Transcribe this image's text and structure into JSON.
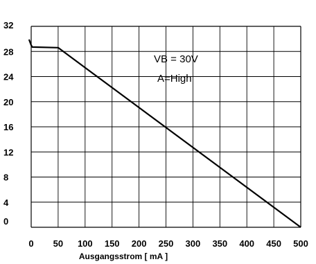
{
  "chart_data": {
    "type": "line",
    "title": "",
    "xlabel": "Ausgangsstrom  [ mA ]",
    "ylabel": "",
    "xlim": [
      0,
      500
    ],
    "ylim": [
      0,
      32
    ],
    "x_ticks": [
      "0",
      "50",
      "100",
      "150",
      "200",
      "250",
      "300",
      "350",
      "400",
      "450",
      "500"
    ],
    "y_ticks": [
      "0",
      "4",
      "8",
      "12",
      "16",
      "20",
      "24",
      "28",
      "32"
    ],
    "grid": true,
    "annotations": [
      "VB = 30V",
      "A=High"
    ],
    "series": [
      {
        "x": [
          -4,
          0,
          2,
          50,
          500
        ],
        "y": [
          29.9,
          29.0,
          28.7,
          28.6,
          0
        ]
      }
    ]
  }
}
